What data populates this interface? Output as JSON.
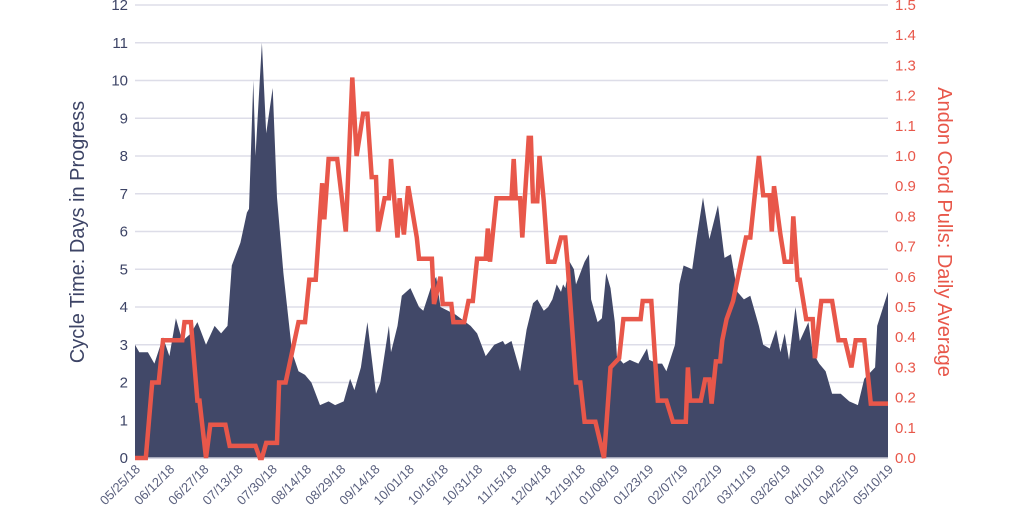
{
  "chart_data": {
    "type": "area+line",
    "title": "",
    "xlabel": "",
    "ylabel": "Cycle Time: Days in Progress",
    "y2label": "Andon Cord Pulls: Daily Average",
    "x_unit": "days since 05/25/18",
    "xlim": [
      0,
      350
    ],
    "ylim": [
      0,
      12
    ],
    "y2lim": [
      0,
      1.5
    ],
    "grid": true,
    "x_tick_labels": [
      "05/25/18",
      "06/12/18",
      "06/27/18",
      "07/13/18",
      "07/30/18",
      "08/14/18",
      "08/29/18",
      "09/14/18",
      "10/01/18",
      "10/16/18",
      "10/31/18",
      "11/15/18",
      "12/04/18",
      "12/19/18",
      "01/08/19",
      "01/23/19",
      "02/07/19",
      "02/22/19",
      "03/11/19",
      "03/26/19",
      "04/10/19",
      "04/25/19",
      "05/10/19"
    ],
    "y_tick_labels": [
      "0",
      "1",
      "2",
      "3",
      "4",
      "5",
      "6",
      "7",
      "8",
      "9",
      "10",
      "11",
      "12"
    ],
    "y2_tick_labels": [
      "0.0",
      "0.1",
      "0.2",
      "0.3",
      "0.4",
      "0.5",
      "0.6",
      "0.7",
      "0.8",
      "0.9",
      "1.0",
      "1.1",
      "1.2",
      "1.3",
      "1.4",
      "1.5"
    ],
    "series": [
      {
        "name": "Cycle Time",
        "type": "area",
        "axis": "left",
        "color": "#414868",
        "points": [
          [
            0,
            3.0
          ],
          [
            2,
            2.8
          ],
          [
            6,
            2.8
          ],
          [
            9,
            2.5
          ],
          [
            13,
            3.2
          ],
          [
            16,
            2.7
          ],
          [
            19,
            3.7
          ],
          [
            22,
            3.1
          ],
          [
            26,
            3.3
          ],
          [
            29,
            3.6
          ],
          [
            33,
            3.0
          ],
          [
            37,
            3.5
          ],
          [
            40,
            3.3
          ],
          [
            43,
            3.5
          ],
          [
            45,
            5.1
          ],
          [
            49,
            5.7
          ],
          [
            52,
            6.5
          ],
          [
            53,
            6.6
          ],
          [
            55,
            10.0
          ],
          [
            56,
            8.0
          ],
          [
            59,
            11.0
          ],
          [
            61,
            8.6
          ],
          [
            64,
            9.8
          ],
          [
            66,
            6.9
          ],
          [
            69,
            4.9
          ],
          [
            73,
            2.8
          ],
          [
            76,
            2.3
          ],
          [
            79,
            2.2
          ],
          [
            82,
            2.0
          ],
          [
            86,
            1.4
          ],
          [
            90,
            1.5
          ],
          [
            93,
            1.4
          ],
          [
            97,
            1.5
          ],
          [
            100,
            2.1
          ],
          [
            102,
            1.8
          ],
          [
            105,
            2.4
          ],
          [
            108,
            3.6
          ],
          [
            112,
            1.7
          ],
          [
            114,
            2.0
          ],
          [
            118,
            3.5
          ],
          [
            119,
            2.8
          ],
          [
            122,
            3.5
          ],
          [
            124,
            4.3
          ],
          [
            128,
            4.5
          ],
          [
            132,
            4.0
          ],
          [
            134,
            3.9
          ],
          [
            138,
            4.6
          ],
          [
            140,
            4.8
          ],
          [
            142,
            4.0
          ],
          [
            149,
            3.8
          ],
          [
            156,
            3.5
          ],
          [
            159,
            3.3
          ],
          [
            163,
            2.7
          ],
          [
            167,
            3.0
          ],
          [
            171,
            3.1
          ],
          [
            172,
            3.0
          ],
          [
            175,
            3.1
          ],
          [
            179,
            2.3
          ],
          [
            182,
            3.4
          ],
          [
            185,
            4.1
          ],
          [
            187,
            4.2
          ],
          [
            190,
            3.9
          ],
          [
            192,
            4.0
          ],
          [
            194,
            4.2
          ],
          [
            196,
            4.6
          ],
          [
            198,
            4.4
          ],
          [
            199,
            4.6
          ],
          [
            200,
            4.5
          ],
          [
            202,
            5.2
          ],
          [
            204,
            5.0
          ],
          [
            205,
            4.6
          ],
          [
            209,
            5.2
          ],
          [
            211,
            5.4
          ],
          [
            212,
            4.2
          ],
          [
            215,
            3.6
          ],
          [
            217,
            3.7
          ],
          [
            219,
            4.9
          ],
          [
            221,
            4.5
          ],
          [
            223,
            3.6
          ],
          [
            224,
            2.7
          ],
          [
            227,
            2.5
          ],
          [
            230,
            2.6
          ],
          [
            234,
            2.5
          ],
          [
            238,
            2.9
          ],
          [
            239,
            2.6
          ],
          [
            243,
            2.5
          ],
          [
            245,
            2.5
          ],
          [
            247,
            2.3
          ],
          [
            251,
            3.0
          ],
          [
            253,
            4.6
          ],
          [
            255,
            5.1
          ],
          [
            259,
            5.0
          ],
          [
            261,
            5.8
          ],
          [
            264,
            6.9
          ],
          [
            267,
            5.8
          ],
          [
            271,
            6.7
          ],
          [
            274,
            5.3
          ],
          [
            277,
            5.4
          ],
          [
            280,
            4.4
          ],
          [
            283,
            4.2
          ],
          [
            286,
            4.3
          ],
          [
            290,
            3.5
          ],
          [
            292,
            3.0
          ],
          [
            295,
            2.9
          ],
          [
            298,
            3.4
          ],
          [
            300,
            2.8
          ],
          [
            302,
            3.3
          ],
          [
            304,
            2.6
          ],
          [
            307,
            4.0
          ],
          [
            309,
            3.1
          ],
          [
            313,
            3.6
          ],
          [
            315,
            2.8
          ],
          [
            318,
            2.5
          ],
          [
            321,
            2.3
          ],
          [
            324,
            1.7
          ],
          [
            328,
            1.7
          ],
          [
            332,
            1.5
          ],
          [
            336,
            1.4
          ],
          [
            339,
            2.1
          ],
          [
            344,
            2.4
          ],
          [
            345,
            3.5
          ],
          [
            350,
            4.4
          ]
        ]
      },
      {
        "name": "Andon Cord Pulls",
        "type": "line",
        "axis": "right",
        "color": "#e8574a",
        "points": [
          [
            0,
            0
          ],
          [
            5,
            0
          ],
          [
            8,
            0.25
          ],
          [
            11,
            0.25
          ],
          [
            13,
            0.39
          ],
          [
            22,
            0.39
          ],
          [
            23,
            0.45
          ],
          [
            26,
            0.45
          ],
          [
            29,
            0.19
          ],
          [
            30,
            0.19
          ],
          [
            33,
            0
          ],
          [
            35,
            0.11
          ],
          [
            42,
            0.11
          ],
          [
            44,
            0.04
          ],
          [
            56,
            0.04
          ],
          [
            58,
            0
          ],
          [
            59,
            0
          ],
          [
            61,
            0.05
          ],
          [
            66,
            0.05
          ],
          [
            67,
            0.25
          ],
          [
            70,
            0.25
          ],
          [
            76,
            0.45
          ],
          [
            79,
            0.45
          ],
          [
            81,
            0.59
          ],
          [
            84,
            0.59
          ],
          [
            87,
            0.91
          ],
          [
            88,
            0.79
          ],
          [
            90,
            0.99
          ],
          [
            94,
            0.99
          ],
          [
            98,
            0.75
          ],
          [
            101,
            1.26
          ],
          [
            103,
            1.0
          ],
          [
            106,
            1.14
          ],
          [
            108,
            1.14
          ],
          [
            110,
            0.93
          ],
          [
            112,
            0.93
          ],
          [
            113,
            0.75
          ],
          [
            116,
            0.86
          ],
          [
            118,
            0.86
          ],
          [
            119,
            0.99
          ],
          [
            120,
            0.9
          ],
          [
            122,
            0.73
          ],
          [
            123,
            0.86
          ],
          [
            125,
            0.74
          ],
          [
            127,
            0.9
          ],
          [
            131,
            0.73
          ],
          [
            132,
            0.66
          ],
          [
            138,
            0.66
          ],
          [
            139,
            0.51
          ],
          [
            142,
            0.6
          ],
          [
            143,
            0.51
          ],
          [
            147,
            0.51
          ],
          [
            148,
            0.45
          ],
          [
            153,
            0.45
          ],
          [
            155,
            0.52
          ],
          [
            157,
            0.52
          ],
          [
            159,
            0.66
          ],
          [
            163,
            0.66
          ],
          [
            164,
            0.76
          ],
          [
            165,
            0.65
          ],
          [
            168,
            0.86
          ],
          [
            175,
            0.86
          ],
          [
            176,
            0.99
          ],
          [
            177,
            0.86
          ],
          [
            179,
            0.86
          ],
          [
            180,
            0.73
          ],
          [
            183,
            1.06
          ],
          [
            184,
            1.06
          ],
          [
            185,
            0.85
          ],
          [
            187,
            0.85
          ],
          [
            188,
            1.0
          ],
          [
            190,
            0.85
          ],
          [
            192,
            0.65
          ],
          [
            195,
            0.65
          ],
          [
            198,
            0.73
          ],
          [
            200,
            0.73
          ],
          [
            201,
            0.65
          ],
          [
            205,
            0.25
          ],
          [
            207,
            0.25
          ],
          [
            209,
            0.12
          ],
          [
            214,
            0.12
          ],
          [
            218,
            0
          ],
          [
            221,
            0.3
          ],
          [
            225,
            0.33
          ],
          [
            227,
            0.46
          ],
          [
            235,
            0.46
          ],
          [
            236,
            0.52
          ],
          [
            240,
            0.52
          ],
          [
            243,
            0.19
          ],
          [
            247,
            0.19
          ],
          [
            250,
            0.12
          ],
          [
            256,
            0.12
          ],
          [
            257,
            0.3
          ],
          [
            258,
            0.19
          ],
          [
            263,
            0.19
          ],
          [
            265,
            0.26
          ],
          [
            267,
            0.26
          ],
          [
            268,
            0.18
          ],
          [
            270,
            0.32
          ],
          [
            272,
            0.32
          ],
          [
            273,
            0.39
          ],
          [
            275,
            0.46
          ],
          [
            278,
            0.52
          ],
          [
            284,
            0.73
          ],
          [
            286,
            0.73
          ],
          [
            290,
            1.0
          ],
          [
            292,
            0.87
          ],
          [
            295,
            0.87
          ],
          [
            296,
            0.75
          ],
          [
            297,
            0.9
          ],
          [
            300,
            0.74
          ],
          [
            302,
            0.65
          ],
          [
            305,
            0.65
          ],
          [
            306,
            0.8
          ],
          [
            308,
            0.59
          ],
          [
            309,
            0.59
          ],
          [
            312,
            0.46
          ],
          [
            315,
            0.46
          ],
          [
            316,
            0.33
          ],
          [
            318,
            0.46
          ],
          [
            319,
            0.52
          ],
          [
            324,
            0.52
          ],
          [
            327,
            0.39
          ],
          [
            330,
            0.39
          ],
          [
            333,
            0.3
          ],
          [
            335,
            0.39
          ],
          [
            339,
            0.39
          ],
          [
            342,
            0.18
          ],
          [
            350,
            0.18
          ]
        ]
      }
    ]
  }
}
